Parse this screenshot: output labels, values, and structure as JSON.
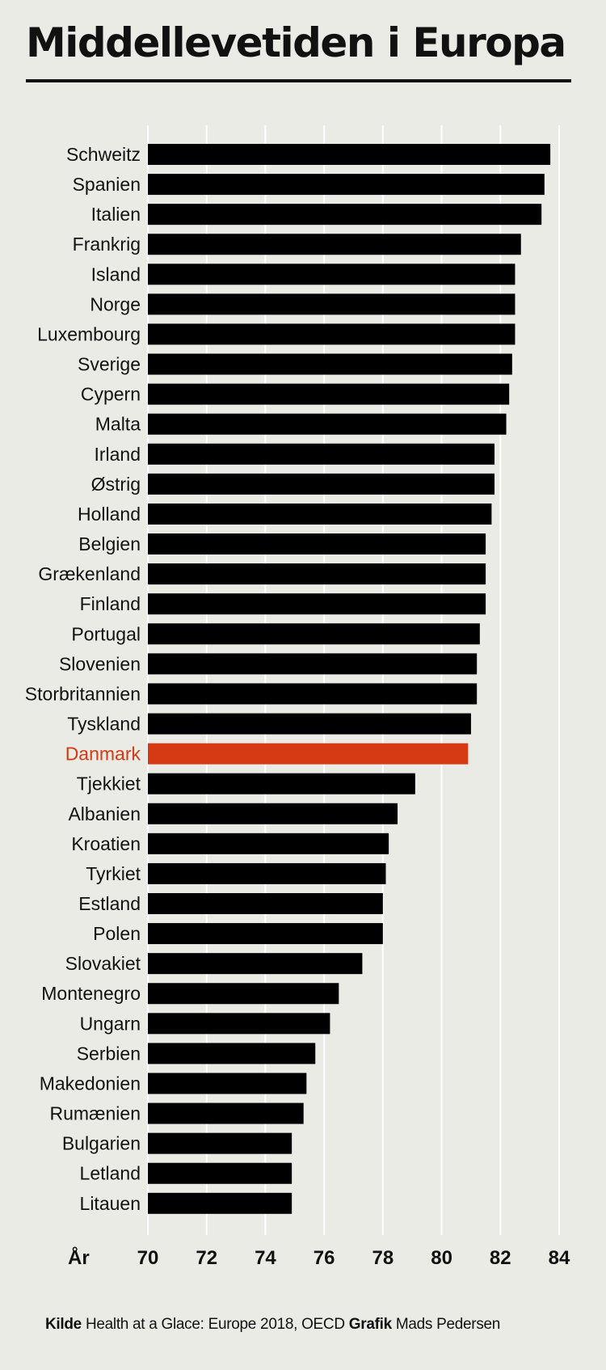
{
  "title": "Middellevetiden i Europa",
  "footer": {
    "kilde_label": "Kilde",
    "kilde_text": "Health at a Glace: Europe 2018, OECD",
    "grafik_label": "Grafik",
    "grafik_text": "Mads Pedersen"
  },
  "colors": {
    "bar": "#000000",
    "highlight": "#d63a14",
    "background": "#ebebe6",
    "grid": "#ffffff"
  },
  "chart_data": {
    "type": "bar",
    "orientation": "horizontal",
    "categories": [
      "Schweitz",
      "Spanien",
      "Italien",
      "Frankrig",
      "Island",
      "Norge",
      "Luxembourg",
      "Sverige",
      "Cypern",
      "Malta",
      "Irland",
      "Østrig",
      "Holland",
      "Belgien",
      "Grækenland",
      "Finland",
      "Portugal",
      "Slovenien",
      "Storbritannien",
      "Tyskland",
      "Danmark",
      "Tjekkiet",
      "Albanien",
      "Kroatien",
      "Tyrkiet",
      "Estland",
      "Polen",
      "Slovakiet",
      "Montenegro",
      "Ungarn",
      "Serbien",
      "Makedonien",
      "Rumænien",
      "Bulgarien",
      "Letland",
      "Litauen"
    ],
    "values": [
      83.7,
      83.5,
      83.4,
      82.7,
      82.5,
      82.5,
      82.5,
      82.4,
      82.3,
      82.2,
      81.8,
      81.8,
      81.7,
      81.5,
      81.5,
      81.5,
      81.3,
      81.2,
      81.2,
      81.0,
      80.9,
      79.1,
      78.5,
      78.2,
      78.1,
      78.0,
      78.0,
      77.3,
      76.5,
      76.2,
      75.7,
      75.4,
      75.3,
      74.9,
      74.9,
      74.9
    ],
    "highlight": "Danmark",
    "xlabel": "År",
    "xlim": [
      70,
      84
    ],
    "xticks": [
      "70",
      "72",
      "74",
      "76",
      "78",
      "80",
      "82",
      "84"
    ],
    "grid": true
  }
}
